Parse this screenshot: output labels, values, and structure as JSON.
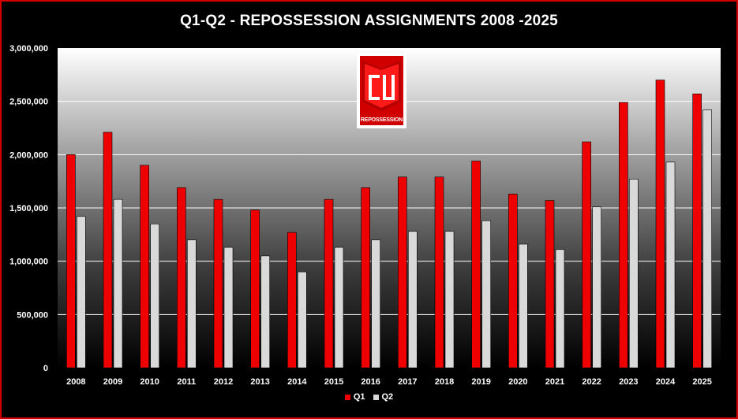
{
  "title": "Q1-Q2 - REPOSSESSION ASSIGNMENTS 2008 -2025",
  "logo": {
    "text": "REPOSSESSION",
    "name": "CU repossession logo"
  },
  "colors": {
    "q1": "#ee0000",
    "q2": "#d9d9d9",
    "border": "#d40000"
  },
  "chart_data": {
    "type": "bar",
    "title": "Q1-Q2 - REPOSSESSION ASSIGNMENTS 2008 -2025",
    "categories": [
      "2008",
      "2009",
      "2010",
      "2011",
      "2012",
      "2013",
      "2014",
      "2015",
      "2016",
      "2017",
      "2018",
      "2019",
      "2020",
      "2021",
      "2022",
      "2023",
      "2024",
      "2025"
    ],
    "series": [
      {
        "name": "Q1",
        "values": [
          2000000,
          2210000,
          1900000,
          1690000,
          1580000,
          1480000,
          1270000,
          1580000,
          1690000,
          1790000,
          1790000,
          1940000,
          1630000,
          1570000,
          2120000,
          2490000,
          2700000,
          2570000
        ]
      },
      {
        "name": "Q2",
        "values": [
          1420000,
          1580000,
          1350000,
          1200000,
          1130000,
          1050000,
          900000,
          1130000,
          1200000,
          1280000,
          1280000,
          1380000,
          1160000,
          1110000,
          1510000,
          1770000,
          1930000,
          2420000
        ]
      }
    ],
    "ylim": [
      0,
      3000000
    ],
    "yticks": [
      0,
      500000,
      1000000,
      1500000,
      2000000,
      2500000,
      3000000
    ],
    "ytick_labels": [
      "0",
      "500,000",
      "1,000,000",
      "1,500,000",
      "2,000,000",
      "2,500,000",
      "3,000,000"
    ],
    "xlabel": "",
    "ylabel": "",
    "grid": true,
    "legend_position": "bottom"
  }
}
